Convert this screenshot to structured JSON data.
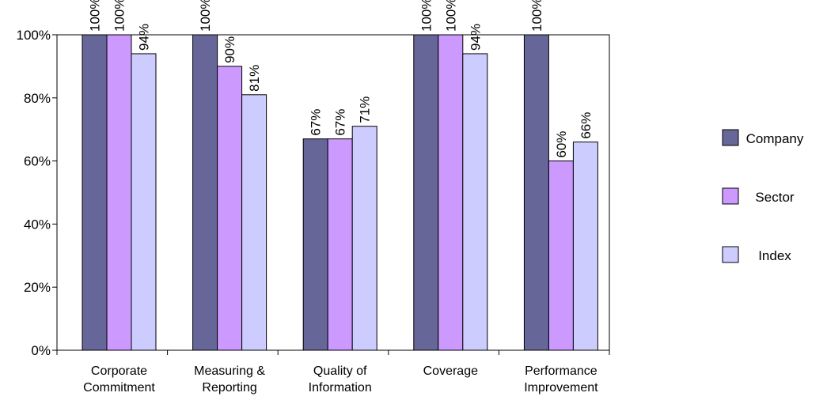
{
  "chart_data": {
    "type": "bar",
    "categories": [
      [
        "Corporate",
        "Commitment"
      ],
      [
        "Measuring &",
        "Reporting"
      ],
      [
        "Quality of",
        "Information"
      ],
      [
        "Coverage"
      ],
      [
        "Performance",
        "Improvement"
      ]
    ],
    "series": [
      {
        "name": "Company",
        "color": "#666699",
        "values": [
          100,
          100,
          67,
          100,
          100
        ],
        "labels": [
          "100%",
          "100%",
          "67%",
          "100%",
          "100%"
        ]
      },
      {
        "name": "Sector",
        "color": "#CC99FF",
        "values": [
          100,
          90,
          67,
          100,
          60
        ],
        "labels": [
          "100%",
          "90%",
          "67%",
          "100%",
          "60%"
        ]
      },
      {
        "name": "Index",
        "color": "#CCCCFF",
        "values": [
          94,
          81,
          71,
          94,
          66
        ],
        "labels": [
          "94%",
          "81%",
          "71%",
          "94%",
          "66%"
        ]
      }
    ],
    "ylim": [
      0,
      100
    ],
    "yticks": [
      0,
      20,
      40,
      60,
      80,
      100
    ],
    "ytick_labels": [
      "0%",
      "20%",
      "40%",
      "60%",
      "80%",
      "100%"
    ],
    "legend_position": "right",
    "grid": false,
    "title": "",
    "xlabel": "",
    "ylabel": ""
  }
}
